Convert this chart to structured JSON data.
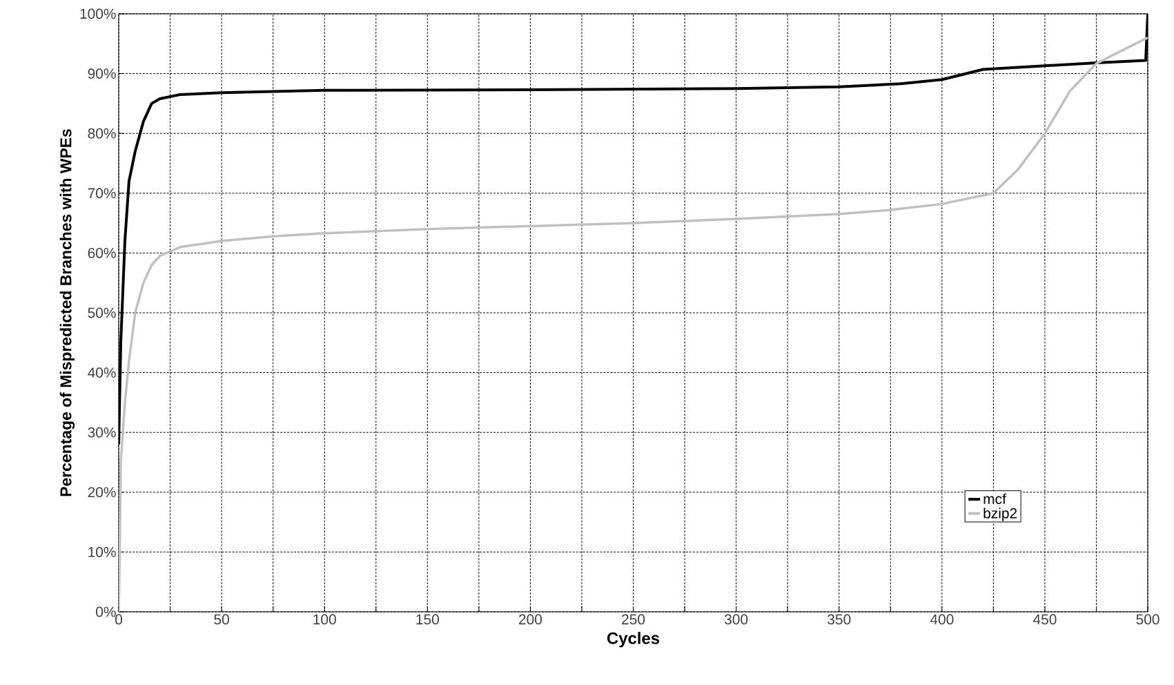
{
  "chart_data": {
    "type": "line",
    "xlabel": "Cycles",
    "ylabel": "Percentage of Mispredicted Branches with WPEs",
    "xlim": [
      0,
      500
    ],
    "xticks": [
      0,
      {
        "value": 25,
        "label": null
      },
      50,
      {
        "value": 75,
        "label": null
      },
      100,
      {
        "value": 125,
        "label": null
      },
      150,
      {
        "value": 175,
        "label": null
      },
      200,
      {
        "value": 225,
        "label": null
      },
      250,
      {
        "value": 275,
        "label": null
      },
      300,
      {
        "value": 325,
        "label": null
      },
      350,
      {
        "value": 375,
        "label": null
      },
      400,
      {
        "value": 425,
        "label": null
      },
      450,
      {
        "value": 475,
        "label": null
      },
      500
    ],
    "ylim": [
      0,
      100
    ],
    "yticks": [
      {
        "value": 0,
        "label": "0%"
      },
      {
        "value": 10,
        "label": "10%"
      },
      {
        "value": 20,
        "label": "20%"
      },
      {
        "value": 30,
        "label": "30%"
      },
      {
        "value": 40,
        "label": "40%"
      },
      {
        "value": 50,
        "label": "50%"
      },
      {
        "value": 60,
        "label": "60%"
      },
      {
        "value": 70,
        "label": "70%"
      },
      {
        "value": 80,
        "label": "80%"
      },
      {
        "value": 90,
        "label": "90%"
      },
      {
        "value": 100,
        "label": "100%"
      }
    ],
    "grid": true,
    "legend": "bottom right",
    "marker": "none",
    "line_style": "solid",
    "series": [
      {
        "name": "mcf",
        "color": "#000000",
        "x": [
          0,
          1,
          3,
          5,
          8,
          12,
          16,
          20,
          30,
          50,
          100,
          200,
          300,
          350,
          380,
          400,
          420,
          450,
          475,
          499,
          500
        ],
        "values": [
          28,
          45,
          62,
          72,
          77,
          82,
          85,
          85.8,
          86.5,
          86.8,
          87.2,
          87.3,
          87.5,
          87.8,
          88.3,
          89,
          90.7,
          91.3,
          91.8,
          92.2,
          100
        ]
      },
      {
        "name": "bzip2",
        "color": "#c0c0c0",
        "x": [
          0,
          0.5,
          1,
          3,
          5,
          8,
          12,
          16,
          20,
          30,
          50,
          75,
          100,
          150,
          200,
          250,
          300,
          350,
          375,
          400,
          425,
          437,
          450,
          462,
          475,
          490,
          500
        ],
        "values": [
          0,
          10,
          25,
          35,
          42,
          50,
          55,
          58,
          59.5,
          61,
          62,
          62.8,
          63.3,
          64,
          64.5,
          65,
          65.7,
          66.5,
          67.2,
          68.2,
          70,
          74,
          80,
          87,
          91.7,
          94.3,
          96
        ]
      }
    ]
  }
}
